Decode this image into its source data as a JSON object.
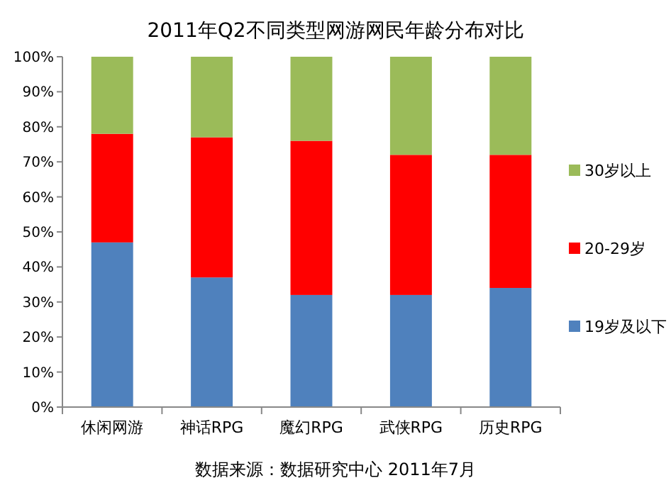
{
  "chart_data": {
    "type": "bar",
    "stacked": true,
    "title": "2011年Q2不同类型网游网民年龄分布对比",
    "categories": [
      "休闲网游",
      "神话RPG",
      "魔幻RPG",
      "武侠RPG",
      "历史RPG"
    ],
    "series": [
      {
        "name": "19岁及以下",
        "color": "#4f81bd",
        "values": [
          47,
          37,
          32,
          32,
          34
        ]
      },
      {
        "name": "20-29岁",
        "color": "#ff0000",
        "values": [
          31,
          40,
          44,
          40,
          38
        ]
      },
      {
        "name": "30岁以上",
        "color": "#9bbb59",
        "values": [
          22,
          23,
          24,
          28,
          28
        ]
      }
    ],
    "ylim": [
      0,
      100
    ],
    "yticks": [
      {
        "value": 0,
        "label": "0%"
      },
      {
        "value": 10,
        "label": "10%"
      },
      {
        "value": 20,
        "label": "20%"
      },
      {
        "value": 30,
        "label": "30%"
      },
      {
        "value": 40,
        "label": "40%"
      },
      {
        "value": 50,
        "label": "50%"
      },
      {
        "value": 60,
        "label": "60%"
      },
      {
        "value": 70,
        "label": "70%"
      },
      {
        "value": 80,
        "label": "80%"
      },
      {
        "value": 90,
        "label": "90%"
      },
      {
        "value": 100,
        "label": "100%"
      }
    ],
    "legend": "right",
    "annotations": [
      "数据来源：数据研究中心 2011年7月"
    ]
  }
}
